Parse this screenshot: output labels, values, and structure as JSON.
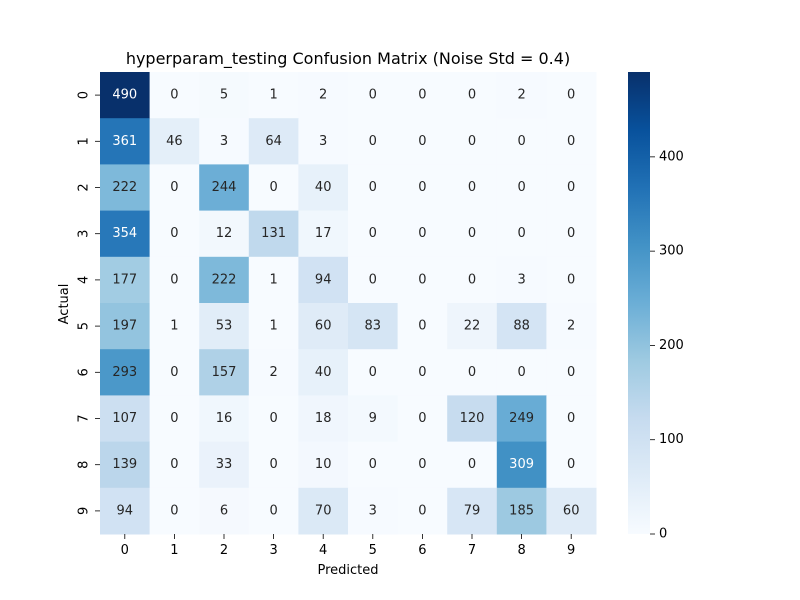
{
  "chart_data": {
    "type": "heatmap",
    "title": "hyperparam_testing Confusion Matrix (Noise Std = 0.4)",
    "xlabel": "Predicted",
    "ylabel": "Actual",
    "x_categories": [
      "0",
      "1",
      "2",
      "3",
      "4",
      "5",
      "6",
      "7",
      "8",
      "9"
    ],
    "y_categories": [
      "0",
      "1",
      "2",
      "3",
      "4",
      "5",
      "6",
      "7",
      "8",
      "9"
    ],
    "values": [
      [
        490,
        0,
        5,
        1,
        2,
        0,
        0,
        0,
        2,
        0
      ],
      [
        361,
        46,
        3,
        64,
        3,
        0,
        0,
        0,
        0,
        0
      ],
      [
        222,
        0,
        244,
        0,
        40,
        0,
        0,
        0,
        0,
        0
      ],
      [
        354,
        0,
        12,
        131,
        17,
        0,
        0,
        0,
        0,
        0
      ],
      [
        177,
        0,
        222,
        1,
        94,
        0,
        0,
        0,
        3,
        0
      ],
      [
        197,
        1,
        53,
        1,
        60,
        83,
        0,
        22,
        88,
        2
      ],
      [
        293,
        0,
        157,
        2,
        40,
        0,
        0,
        0,
        0,
        0
      ],
      [
        107,
        0,
        16,
        0,
        18,
        9,
        0,
        120,
        249,
        0
      ],
      [
        139,
        0,
        33,
        0,
        10,
        0,
        0,
        0,
        309,
        0
      ],
      [
        94,
        0,
        6,
        0,
        70,
        3,
        0,
        79,
        185,
        60
      ]
    ],
    "colormap": "Blues",
    "color_range": [
      0,
      490
    ],
    "colorbar_ticks": [
      0,
      100,
      200,
      300,
      400
    ],
    "annotations": true,
    "grid": false
  }
}
